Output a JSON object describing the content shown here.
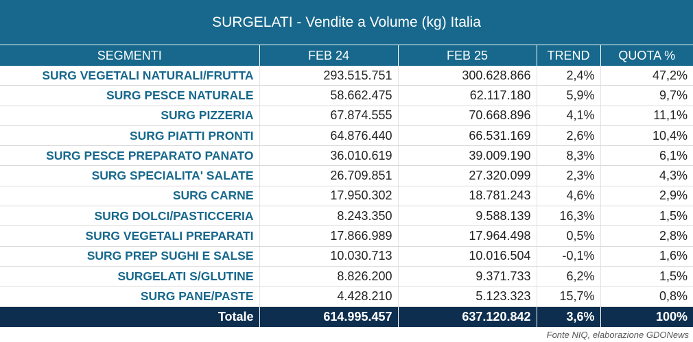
{
  "title": "SURGELATI - Vendite a Volume (kg) Italia",
  "table": {
    "columns": [
      "SEGMENTI",
      "FEB 24",
      "FEB 25",
      "TREND",
      "QUOTA %"
    ],
    "rows": [
      [
        "SURG VEGETALI NATURALI/FRUTTA",
        "293.515.751",
        "300.628.866",
        "2,4%",
        "47,2%"
      ],
      [
        "SURG PESCE NATURALE",
        "58.662.475",
        "62.117.180",
        "5,9%",
        "9,7%"
      ],
      [
        "SURG PIZZERIA",
        "67.874.555",
        "70.668.896",
        "4,1%",
        "11,1%"
      ],
      [
        "SURG PIATTI PRONTI",
        "64.876.440",
        "66.531.169",
        "2,6%",
        "10,4%"
      ],
      [
        "SURG PESCE PREPARATO PANATO",
        "36.010.619",
        "39.009.190",
        "8,3%",
        "6,1%"
      ],
      [
        "SURG SPECIALITA' SALATE",
        "26.709.851",
        "27.320.099",
        "2,3%",
        "4,3%"
      ],
      [
        "SURG CARNE",
        "17.950.302",
        "18.781.243",
        "4,6%",
        "2,9%"
      ],
      [
        "SURG DOLCI/PASTICCERIA",
        "8.243.350",
        "9.588.139",
        "16,3%",
        "1,5%"
      ],
      [
        "SURG VEGETALI PREPARATI",
        "17.866.989",
        "17.964.498",
        "0,5%",
        "2,8%"
      ],
      [
        "SURG PREP SUGHI E SALSE",
        "10.030.713",
        "10.016.504",
        "-0,1%",
        "1,6%"
      ],
      [
        "SURGELATI S/GLUTINE",
        "8.826.200",
        "9.371.733",
        "6,2%",
        "1,5%"
      ],
      [
        "SURG PANE/PASTE",
        "4.428.210",
        "5.123.323",
        "15,7%",
        "0,8%"
      ]
    ],
    "total": [
      "Totale",
      "614.995.457",
      "637.120.842",
      "3,6%",
      "100%"
    ]
  },
  "source": "Fonte NIQ, elaborazione GDONews"
}
